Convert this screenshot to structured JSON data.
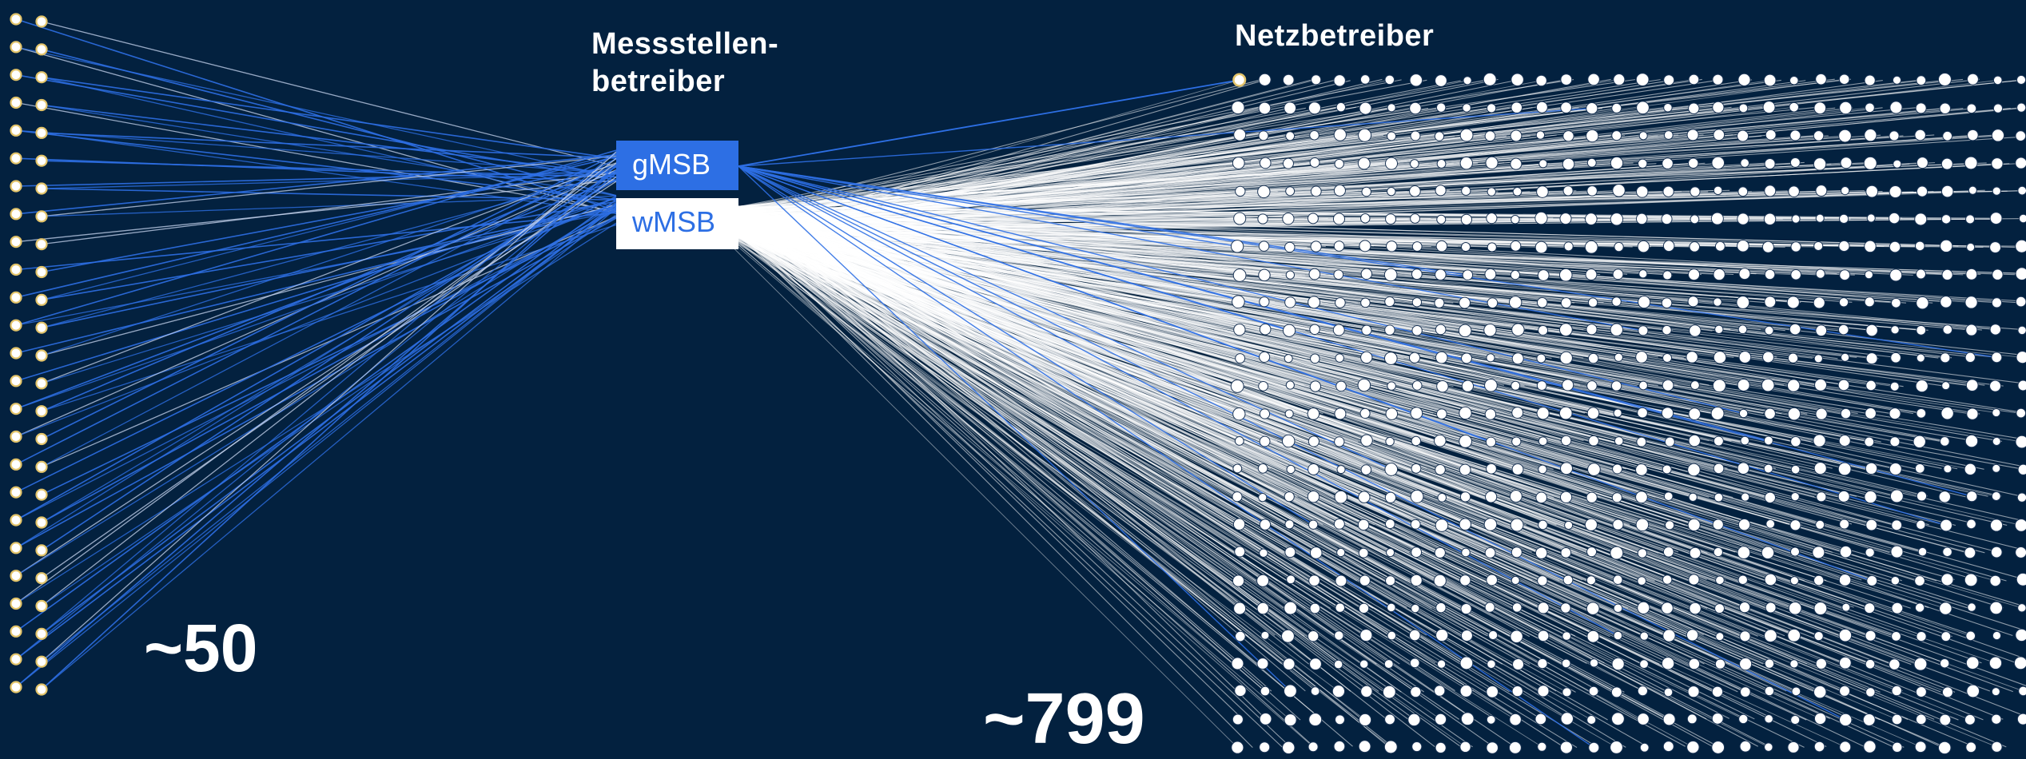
{
  "labels": {
    "msb_heading_line1": "Messstellen-",
    "msb_heading_line2": "betreiber",
    "nb_heading": "Netzbetreiber",
    "gmsb": "gMSB",
    "wmsb": "wMSB",
    "count_left": "~50",
    "count_right": "~799"
  },
  "colors": {
    "background": "#03213f",
    "blue": "#2d6fe4",
    "white": "#ffffff",
    "node_ring": "#e3c46a"
  },
  "network": {
    "left_nodes": 50,
    "right_nodes": 799
  }
}
